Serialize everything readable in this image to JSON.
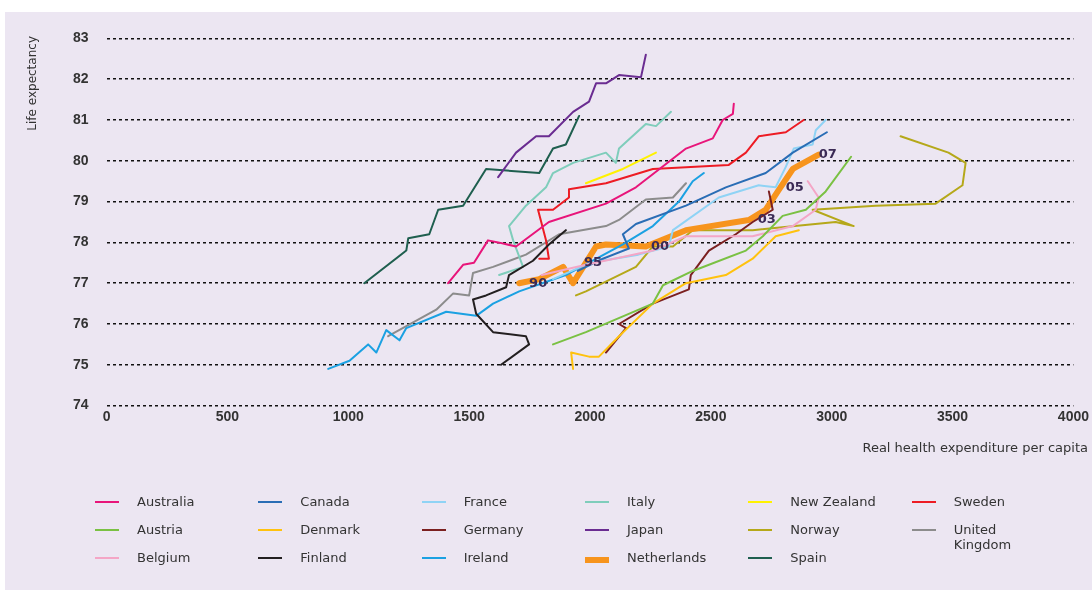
{
  "chart_data": {
    "type": "line",
    "xlabel": "Real health expenditure per capita",
    "ylabel": "Life expectancy",
    "xlim": [
      0,
      4000
    ],
    "xticks": [
      0,
      500,
      1000,
      1500,
      2000,
      2500,
      3000,
      3500,
      4000
    ],
    "ylim": [
      74,
      83
    ],
    "yticks": [
      74,
      75,
      76,
      77,
      78,
      79,
      80,
      81,
      82,
      83
    ],
    "grid": "y",
    "legend": "bottom",
    "marker": "none",
    "line_style": "solid",
    "series": [
      {
        "name": "Australia",
        "color": "#e8157a",
        "x": [
          1413,
          1475,
          1520,
          1578,
          1620,
          1694,
          1830,
          2066,
          2190,
          2397,
          2508,
          2549,
          2591,
          2595
        ],
        "values": [
          77.0,
          77.45,
          77.5,
          78.05,
          78.0,
          77.9,
          78.5,
          78.95,
          79.35,
          80.3,
          80.55,
          81.0,
          81.15,
          81.4
        ]
      },
      {
        "name": "Austria",
        "color": "#7ac143",
        "x": [
          1847,
          1983,
          2260,
          2302,
          2425,
          2645,
          2715,
          2797,
          2893,
          2975,
          3080
        ],
        "values": [
          75.5,
          75.8,
          76.5,
          76.95,
          77.3,
          77.8,
          78.15,
          78.65,
          78.8,
          79.25,
          80.1
        ]
      },
      {
        "name": "Belgium",
        "color": "#f4a6c6",
        "x": [
          1800,
          1983,
          2260,
          2397,
          2673,
          2839,
          2934,
          2946,
          2901
        ],
        "values": [
          77.2,
          77.45,
          77.8,
          78.15,
          78.15,
          78.4,
          78.8,
          79.1,
          79.5
        ]
      },
      {
        "name": "Canada",
        "color": "#2a6db5",
        "x": [
          1950,
          2053,
          2161,
          2136,
          2190,
          2397,
          2562,
          2727,
          2839,
          2980
        ],
        "values": [
          77.3,
          77.6,
          77.85,
          78.2,
          78.45,
          78.9,
          79.35,
          79.7,
          80.2,
          80.7
        ]
      },
      {
        "name": "Denmark",
        "color": "#ffc20e",
        "x": [
          1930,
          1922,
          1996,
          2037,
          2120,
          2260,
          2355,
          2397,
          2562,
          2673,
          2768,
          2864
        ],
        "values": [
          74.9,
          75.3,
          75.2,
          75.2,
          75.7,
          76.5,
          76.85,
          77.0,
          77.2,
          77.6,
          78.15,
          78.3
        ]
      },
      {
        "name": "Finland",
        "color": "#231f20",
        "x": [
          1632,
          1748,
          1735,
          1599,
          1529,
          1516,
          1570,
          1653,
          1665,
          1764,
          1830,
          1900
        ],
        "values": [
          75.0,
          75.5,
          75.7,
          75.8,
          76.25,
          76.6,
          76.7,
          76.9,
          77.2,
          77.55,
          77.95,
          78.3
        ]
      },
      {
        "name": "France",
        "color": "#8fd3f5",
        "x": [
          1847,
          2000,
          2200,
          2326,
          2343,
          2533,
          2698,
          2768,
          2810,
          2843,
          2921,
          2934,
          2975
        ],
        "values": [
          77.1,
          77.5,
          77.7,
          77.9,
          78.3,
          79.1,
          79.4,
          79.35,
          79.85,
          80.3,
          80.4,
          80.75,
          81.0
        ]
      },
      {
        "name": "Germany",
        "color": "#7b2020",
        "x": [
          2066,
          2149,
          2120,
          2260,
          2409,
          2417,
          2492,
          2603,
          2673,
          2756,
          2740
        ],
        "values": [
          75.3,
          75.9,
          76.0,
          76.5,
          76.85,
          77.2,
          77.8,
          78.2,
          78.5,
          78.8,
          79.25
        ]
      },
      {
        "name": "Ireland",
        "color": "#1ba1e2",
        "x": [
          917,
          1005,
          1082,
          1116,
          1157,
          1212,
          1240,
          1405,
          1529,
          1599,
          1707,
          1900,
          2136,
          2260,
          2368,
          2425,
          2471
        ],
        "values": [
          74.9,
          75.1,
          75.5,
          75.3,
          75.85,
          75.6,
          75.9,
          76.3,
          76.2,
          76.5,
          76.8,
          77.2,
          77.95,
          78.4,
          79.0,
          79.5,
          79.7
        ]
      },
      {
        "name": "Italy",
        "color": "#7fcdbb",
        "x": [
          1624,
          1723,
          1682,
          1665,
          1735,
          1818,
          1847,
          1930,
          2066,
          2107,
          2120,
          2231,
          2273,
          2335
        ],
        "values": [
          77.2,
          77.4,
          78.05,
          78.4,
          78.9,
          79.35,
          79.7,
          79.95,
          80.2,
          79.95,
          80.3,
          80.9,
          80.85,
          81.2
        ]
      },
      {
        "name": "Japan",
        "color": "#6a2c91",
        "x": [
          1620,
          1694,
          1777,
          1830,
          1930,
          1996,
          2025,
          2066,
          2120,
          2211,
          2231
        ],
        "values": [
          79.6,
          80.2,
          80.6,
          80.6,
          81.2,
          81.45,
          81.9,
          81.9,
          82.1,
          82.05,
          82.6
        ]
      },
      {
        "name": "Netherlands",
        "color": "#f7941d",
        "x": [
          1707,
          1790,
          1889,
          1930,
          2025,
          2066,
          2231,
          2397,
          2657,
          2727,
          2777,
          2839,
          2946
        ],
        "values": [
          77.0,
          77.1,
          77.4,
          77.0,
          77.9,
          77.95,
          77.9,
          78.3,
          78.55,
          78.8,
          79.25,
          79.8,
          80.15
        ]
      },
      {
        "name": "New Zealand",
        "color": "#fff200",
        "x": [
          1983,
          2136,
          2273
        ],
        "values": [
          79.45,
          79.8,
          80.2
        ]
      },
      {
        "name": "Norway",
        "color": "#b5a81a",
        "x": [
          1942,
          1983,
          2190,
          2260,
          2343,
          2425,
          2673,
          3016,
          3091,
          2921,
          3182,
          3430,
          3541,
          3554,
          3483,
          3285
        ],
        "values": [
          76.7,
          76.8,
          77.4,
          77.9,
          77.9,
          78.3,
          78.3,
          78.5,
          78.4,
          78.8,
          78.9,
          78.95,
          79.4,
          79.95,
          80.2,
          80.6
        ]
      },
      {
        "name": "Spain",
        "color": "#1f5f4f",
        "x": [
          1066,
          1240,
          1248,
          1335,
          1372,
          1475,
          1570,
          1790,
          1847,
          1900,
          1955
        ],
        "values": [
          77.0,
          77.8,
          78.1,
          78.2,
          78.8,
          78.9,
          79.8,
          79.7,
          80.3,
          80.4,
          81.1
        ]
      },
      {
        "name": "Sweden",
        "color": "#ed1c24",
        "x": [
          1790,
          1830,
          1818,
          1785,
          1847,
          1913,
          1913,
          2066,
          2260,
          2574,
          2645,
          2698,
          2810,
          2884
        ],
        "values": [
          77.6,
          77.6,
          78.05,
          78.8,
          78.8,
          79.1,
          79.3,
          79.45,
          79.8,
          79.9,
          80.2,
          80.6,
          80.7,
          81.0
        ]
      },
      {
        "name": "United Kingdom",
        "color": "#8c8c8c",
        "x": [
          1165,
          1364,
          1434,
          1500,
          1516,
          1599,
          1735,
          1872,
          2066,
          2120,
          2231,
          2343,
          2397
        ],
        "values": [
          75.7,
          76.35,
          76.75,
          76.7,
          77.25,
          77.4,
          77.7,
          78.2,
          78.4,
          78.55,
          79.05,
          79.1,
          79.45
        ]
      }
    ],
    "annotations": [
      {
        "text": "90",
        "x": 1748,
        "y": 77.0
      },
      {
        "text": "95",
        "x": 1975,
        "y": 77.5
      },
      {
        "text": "00",
        "x": 2252,
        "y": 77.9
      },
      {
        "text": "03",
        "x": 2694,
        "y": 78.55
      },
      {
        "text": "05",
        "x": 2810,
        "y": 79.35
      },
      {
        "text": "07",
        "x": 2946,
        "y": 80.15
      }
    ]
  }
}
